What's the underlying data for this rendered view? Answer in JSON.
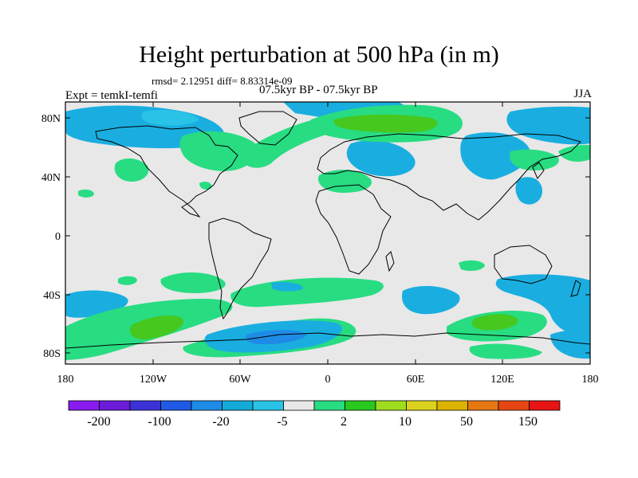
{
  "title": "Height perturbation at 500 hPa (in m)",
  "stats": "rmsd= 2.12951 diff= 8.83314e-09",
  "experiment": "Expt = temkI-temfi",
  "period": "07.5kyr BP - 07.5kyr BP",
  "season": "JJA",
  "lat_ticks": [
    "80N",
    "40N",
    "0",
    "40S",
    "80S"
  ],
  "lon_ticks": [
    "180",
    "120W",
    "60W",
    "0",
    "60E",
    "120E",
    "180"
  ],
  "colorbar": {
    "colors": [
      "#8a1cf0",
      "#6a1cd8",
      "#3c32d8",
      "#1e5ae6",
      "#1e8ce6",
      "#14aad8",
      "#28c3e6",
      "#e8e8e8",
      "#28dc82",
      "#28c81e",
      "#a0dc1e",
      "#dcd21e",
      "#dcb400",
      "#e67814",
      "#e64614",
      "#e61414"
    ],
    "labels": [
      "-200",
      "-100",
      "-20",
      "-5",
      "2",
      "10",
      "50",
      "150"
    ]
  },
  "map_colors": {
    "neutral": "#e8e8e8",
    "cyan": "#1aaee0",
    "light_blue": "#28c3e6",
    "blue": "#1e8ce6",
    "green": "#28dc82",
    "bright_green": "#46c81e"
  }
}
